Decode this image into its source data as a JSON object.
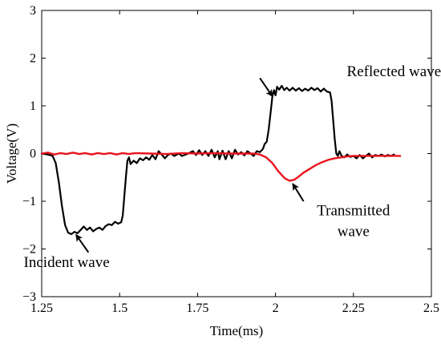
{
  "chart_data": {
    "type": "line",
    "title": "",
    "xlabel": "Time(ms)",
    "ylabel": "Voltage(V)",
    "xlim": [
      1.25,
      2.5
    ],
    "ylim": [
      -3,
      3
    ],
    "xticks": [
      "1.25",
      "1.5",
      "1.75",
      "2",
      "2.25",
      "2.5"
    ],
    "yticks": [
      "-3",
      "-2",
      "-1",
      "0",
      "1",
      "2",
      "3"
    ],
    "grid": false,
    "legend": "none",
    "series": [
      {
        "color": "#000000",
        "points": [
          [
            1.25,
            0.0
          ],
          [
            1.27,
            -0.02
          ],
          [
            1.285,
            -0.05
          ],
          [
            1.295,
            -0.2
          ],
          [
            1.305,
            -0.6
          ],
          [
            1.315,
            -1.1
          ],
          [
            1.325,
            -1.5
          ],
          [
            1.335,
            -1.66
          ],
          [
            1.345,
            -1.69
          ],
          [
            1.355,
            -1.64
          ],
          [
            1.365,
            -1.67
          ],
          [
            1.375,
            -1.6
          ],
          [
            1.385,
            -1.53
          ],
          [
            1.395,
            -1.6
          ],
          [
            1.405,
            -1.55
          ],
          [
            1.415,
            -1.63
          ],
          [
            1.425,
            -1.58
          ],
          [
            1.435,
            -1.55
          ],
          [
            1.445,
            -1.6
          ],
          [
            1.455,
            -1.52
          ],
          [
            1.465,
            -1.48
          ],
          [
            1.475,
            -1.5
          ],
          [
            1.485,
            -1.43
          ],
          [
            1.495,
            -1.47
          ],
          [
            1.505,
            -1.44
          ],
          [
            1.51,
            -1.3
          ],
          [
            1.515,
            -0.9
          ],
          [
            1.52,
            -0.5
          ],
          [
            1.525,
            -0.15
          ],
          [
            1.53,
            -0.08
          ],
          [
            1.535,
            -0.22
          ],
          [
            1.545,
            -0.15
          ],
          [
            1.555,
            -0.2
          ],
          [
            1.565,
            -0.1
          ],
          [
            1.575,
            -0.14
          ],
          [
            1.585,
            -0.08
          ],
          [
            1.595,
            -0.13
          ],
          [
            1.605,
            -0.03
          ],
          [
            1.615,
            -0.12
          ],
          [
            1.625,
            0.05
          ],
          [
            1.635,
            -0.02
          ],
          [
            1.645,
            -0.1
          ],
          [
            1.655,
            -0.03
          ],
          [
            1.665,
            0.0
          ],
          [
            1.675,
            -0.05
          ],
          [
            1.69,
            0.0
          ],
          [
            1.7,
            -0.05
          ],
          [
            1.72,
            0.0
          ],
          [
            1.735,
            0.05
          ],
          [
            1.745,
            -0.03
          ],
          [
            1.755,
            0.07
          ],
          [
            1.765,
            -0.03
          ],
          [
            1.775,
            0.05
          ],
          [
            1.785,
            -0.05
          ],
          [
            1.795,
            0.08
          ],
          [
            1.805,
            -0.08
          ],
          [
            1.815,
            0.05
          ],
          [
            1.82,
            -0.12
          ],
          [
            1.83,
            0.06
          ],
          [
            1.84,
            -0.12
          ],
          [
            1.85,
            0.05
          ],
          [
            1.86,
            -0.1
          ],
          [
            1.87,
            0.08
          ],
          [
            1.88,
            -0.02
          ],
          [
            1.89,
            0.03
          ],
          [
            1.9,
            -0.04
          ],
          [
            1.91,
            0.05
          ],
          [
            1.92,
            0.0
          ],
          [
            1.93,
            -0.05
          ],
          [
            1.94,
            0.05
          ],
          [
            1.95,
            0.03
          ],
          [
            1.96,
            0.1
          ],
          [
            1.965,
            0.2
          ],
          [
            1.972,
            0.25
          ],
          [
            1.978,
            0.5
          ],
          [
            1.985,
            0.9
          ],
          [
            1.99,
            1.2
          ],
          [
            1.995,
            1.33
          ],
          [
            2.0,
            1.22
          ],
          [
            2.005,
            1.4
          ],
          [
            2.012,
            1.34
          ],
          [
            2.02,
            1.42
          ],
          [
            2.028,
            1.33
          ],
          [
            2.036,
            1.38
          ],
          [
            2.045,
            1.32
          ],
          [
            2.055,
            1.38
          ],
          [
            2.065,
            1.32
          ],
          [
            2.075,
            1.37
          ],
          [
            2.085,
            1.31
          ],
          [
            2.095,
            1.36
          ],
          [
            2.105,
            1.32
          ],
          [
            2.115,
            1.38
          ],
          [
            2.125,
            1.33
          ],
          [
            2.135,
            1.37
          ],
          [
            2.145,
            1.3
          ],
          [
            2.155,
            1.36
          ],
          [
            2.165,
            1.3
          ],
          [
            2.175,
            1.28
          ],
          [
            2.18,
            1.1
          ],
          [
            2.185,
            0.7
          ],
          [
            2.19,
            0.3
          ],
          [
            2.195,
            0.0
          ],
          [
            2.2,
            -0.05
          ],
          [
            2.205,
            0.05
          ],
          [
            2.212,
            -0.05
          ],
          [
            2.22,
            -0.08
          ],
          [
            2.23,
            -0.02
          ],
          [
            2.24,
            -0.07
          ],
          [
            2.25,
            -0.05
          ],
          [
            2.26,
            -0.1
          ],
          [
            2.27,
            -0.03
          ],
          [
            2.28,
            -0.1
          ],
          [
            2.29,
            -0.05
          ],
          [
            2.3,
            0.0
          ],
          [
            2.31,
            -0.08
          ],
          [
            2.32,
            -0.03
          ],
          [
            2.33,
            -0.05
          ],
          [
            2.34,
            -0.02
          ],
          [
            2.35,
            -0.06
          ],
          [
            2.36,
            -0.03
          ],
          [
            2.37,
            -0.05
          ],
          [
            2.38,
            -0.02
          ]
        ]
      },
      {
        "color": "#e8141c",
        "points": [
          [
            1.25,
            0.0
          ],
          [
            1.27,
            0.02
          ],
          [
            1.29,
            -0.02
          ],
          [
            1.31,
            0.01
          ],
          [
            1.33,
            -0.01
          ],
          [
            1.35,
            0.02
          ],
          [
            1.37,
            -0.01
          ],
          [
            1.39,
            0.01
          ],
          [
            1.41,
            -0.02
          ],
          [
            1.43,
            0.01
          ],
          [
            1.45,
            -0.01
          ],
          [
            1.47,
            0.01
          ],
          [
            1.49,
            -0.02
          ],
          [
            1.51,
            0.01
          ],
          [
            1.53,
            -0.01
          ],
          [
            1.55,
            0.01
          ],
          [
            1.6,
            0.0
          ],
          [
            1.65,
            -0.01
          ],
          [
            1.7,
            0.01
          ],
          [
            1.75,
            0.0
          ],
          [
            1.8,
            0.01
          ],
          [
            1.85,
            0.0
          ],
          [
            1.9,
            0.0
          ],
          [
            1.93,
            0.0
          ],
          [
            1.95,
            -0.02
          ],
          [
            1.97,
            -0.08
          ],
          [
            1.99,
            -0.2
          ],
          [
            2.01,
            -0.38
          ],
          [
            2.03,
            -0.52
          ],
          [
            2.045,
            -0.57
          ],
          [
            2.06,
            -0.55
          ],
          [
            2.075,
            -0.48
          ],
          [
            2.09,
            -0.4
          ],
          [
            2.11,
            -0.32
          ],
          [
            2.13,
            -0.24
          ],
          [
            2.15,
            -0.18
          ],
          [
            2.17,
            -0.13
          ],
          [
            2.19,
            -0.1
          ],
          [
            2.21,
            -0.08
          ],
          [
            2.23,
            -0.06
          ],
          [
            2.25,
            -0.05
          ],
          [
            2.3,
            -0.05
          ],
          [
            2.35,
            -0.05
          ],
          [
            2.4,
            -0.05
          ]
        ]
      }
    ],
    "annotations": [
      {
        "lines": [
          "Reflected wave"
        ],
        "text_x": 2.38,
        "text_y": 1.62,
        "arrow_from": [
          1.95,
          1.58
        ],
        "arrow_to": [
          1.99,
          1.2
        ]
      },
      {
        "lines": [
          "Incident wave"
        ],
        "text_x": 1.33,
        "text_y": -2.38,
        "arrow_from": [
          1.4,
          -2.07
        ],
        "arrow_to": [
          1.36,
          -1.7
        ]
      },
      {
        "lines": [
          "Transmitted",
          "wave"
        ],
        "text_x": 2.25,
        "text_y": -1.29,
        "text_y2": -1.73,
        "arrow_from": [
          2.09,
          -1.0
        ],
        "arrow_to": [
          2.055,
          -0.63
        ]
      }
    ]
  }
}
